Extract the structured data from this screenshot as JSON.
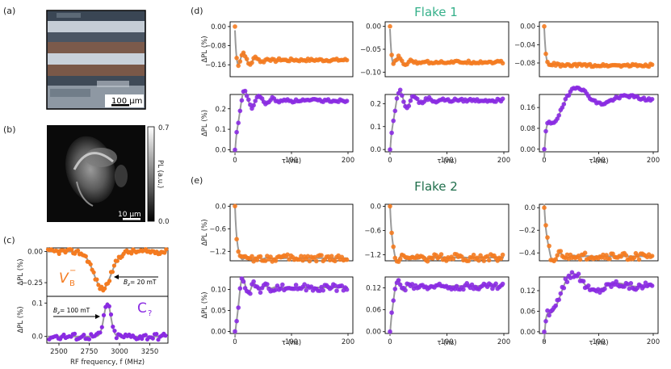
{
  "figure": {
    "panel_labels": {
      "a": "(a)",
      "b": "(b)",
      "c": "(c)",
      "d": "(d)",
      "e": "(e)"
    },
    "flake1_title": "Flake 1",
    "flake2_title": "Flake 2"
  },
  "panel_a": {
    "scalebar_label": "100 µm",
    "image_colors": {
      "stripe": "#7b5a4b",
      "metal": "#c5cdd6",
      "dark": "#3a4654"
    }
  },
  "panel_b": {
    "scalebar_label": "10 µm",
    "colorbar_label": "PL (a.u.)",
    "colorbar_max": "0.7",
    "colorbar_min": "0.0"
  },
  "panel_c": {
    "xlabel": "RF frequency, f (MHz)",
    "ylabel_top": "ΔPL (%)",
    "ylabel_bottom": "ΔPL (%)",
    "vb_label": "V",
    "vb_sub": "B",
    "vb_sup": "−",
    "c_label": "C",
    "c_sub": "?",
    "bz_top": "B",
    "bz_top_rest": " = 20 mT",
    "bz_bottom": "B",
    "bz_bottom_rest": " = 100 mT",
    "bz_sub": "z",
    "x_ticks": [
      "2500",
      "2750",
      "3000",
      "3250"
    ],
    "top_ticks": [
      "0.00",
      "−0.25"
    ],
    "bottom_ticks": [
      "0.1",
      "0.0"
    ]
  },
  "grid": {
    "ylabel": "ΔPL (%)",
    "xlabel": "τ (ns)",
    "x_ticks": [
      "0",
      "100",
      "200"
    ]
  },
  "colors": {
    "orange": "#f47b20",
    "purple": "#8a2be2",
    "fit": "#9a9a9a"
  },
  "chart_data": [
    {
      "panel": "c-top",
      "type": "scatter",
      "x_range": [
        2400,
        3400
      ],
      "ylim": [
        -0.36,
        0.03
      ],
      "dip_center": 2860,
      "dip_depth": -0.3,
      "dip_width": 100,
      "series": [
        {
          "name": "V_B^-",
          "color": "#f47b20"
        }
      ]
    },
    {
      "panel": "c-bottom",
      "type": "scatter",
      "x_range": [
        2400,
        3400
      ],
      "ylim": [
        -0.02,
        0.12
      ],
      "peak_center": 2900,
      "peak_height": 0.1,
      "peak_width": 40,
      "series": [
        {
          "name": "C_?",
          "color": "#8a2be2"
        }
      ]
    },
    {
      "panel": "d-1-top",
      "type": "scatter",
      "x_range": [
        0,
        200
      ],
      "yticks": [
        "0.00",
        "−0.08",
        "−0.16"
      ],
      "ylim": [
        -0.21,
        0.02
      ],
      "steady": -0.14,
      "start": 0.0,
      "min_value": -0.2,
      "osc_period": 22,
      "decay": 25
    },
    {
      "panel": "d-2-top",
      "type": "scatter",
      "x_range": [
        0,
        200
      ],
      "yticks": [
        "0.00",
        "−0.05",
        "−0.10"
      ],
      "ylim": [
        -0.11,
        0.01
      ],
      "steady": -0.078,
      "start": 0.0,
      "min_value": -0.1,
      "osc_period": 22,
      "decay": 25
    },
    {
      "panel": "d-3-top",
      "type": "scatter",
      "x_range": [
        0,
        200
      ],
      "yticks": [
        "0.00",
        "−0.04",
        "−0.08"
      ],
      "ylim": [
        -0.11,
        0.01
      ],
      "steady": -0.085,
      "start": 0.0,
      "min_value": -0.095,
      "osc_period": 30,
      "decay": 15
    },
    {
      "panel": "d-1-bottom",
      "type": "scatter",
      "x_range": [
        0,
        200
      ],
      "yticks": [
        "0.0",
        "0.1",
        "0.2"
      ],
      "ylim": [
        -0.01,
        0.27
      ],
      "steady": 0.24,
      "start": 0.0,
      "min_value": 0.14,
      "osc_period": 25,
      "decay": 30
    },
    {
      "panel": "d-2-bottom",
      "type": "scatter",
      "x_range": [
        0,
        200
      ],
      "yticks": [
        "0.0",
        "0.1",
        "0.2"
      ],
      "ylim": [
        -0.01,
        0.24
      ],
      "steady": 0.215,
      "start": 0.0,
      "min_value": 0.13,
      "osc_period": 25,
      "decay": 30
    },
    {
      "panel": "d-3-bottom",
      "type": "scatter",
      "x_range": [
        0,
        200
      ],
      "yticks": [
        "0.00",
        "0.08",
        "0.16"
      ],
      "ylim": [
        -0.01,
        0.21
      ],
      "steady": 0.195,
      "start": 0.0,
      "min_value": 0.06,
      "osc_period": 90,
      "decay": 60
    },
    {
      "panel": "e-1-top",
      "type": "scatter",
      "x_range": [
        0,
        200
      ],
      "yticks": [
        "0.0",
        "−0.6",
        "−1.2"
      ],
      "ylim": [
        -1.45,
        0.05
      ],
      "steady": -1.38,
      "start": 0.0,
      "min_value": -1.3,
      "osc_period": 18,
      "decay": 35
    },
    {
      "panel": "e-2-top",
      "type": "scatter",
      "x_range": [
        0,
        200
      ],
      "yticks": [
        "0.0",
        "−0.6",
        "−1.2"
      ],
      "ylim": [
        -1.35,
        0.05
      ],
      "steady": -1.27,
      "start": 0.0,
      "min_value": -1.1,
      "osc_period": 18,
      "decay": 35
    },
    {
      "panel": "e-3-top",
      "type": "scatter",
      "x_range": [
        0,
        200
      ],
      "yticks": [
        "0.0",
        "−0.2",
        "−0.4"
      ],
      "ylim": [
        -0.47,
        0.03
      ],
      "steady": -0.43,
      "start": 0.0,
      "min_value": -0.3,
      "osc_period": 25,
      "decay": 20
    },
    {
      "panel": "e-1-bottom",
      "type": "scatter",
      "x_range": [
        0,
        200
      ],
      "yticks": [
        "0.00",
        "0.05",
        "0.10"
      ],
      "ylim": [
        -0.005,
        0.13
      ],
      "steady": 0.105,
      "start": 0.0,
      "min_value": 0.05,
      "osc_period": 20,
      "decay": 20
    },
    {
      "panel": "e-2-bottom",
      "type": "scatter",
      "x_range": [
        0,
        200
      ],
      "yticks": [
        "0.00",
        "0.06",
        "0.12"
      ],
      "ylim": [
        -0.005,
        0.15
      ],
      "steady": 0.125,
      "start": 0.0,
      "min_value": 0.08,
      "osc_period": 20,
      "decay": 20
    },
    {
      "panel": "e-3-bottom",
      "type": "scatter",
      "x_range": [
        0,
        200
      ],
      "yticks": [
        "0.00",
        "0.06",
        "0.12"
      ],
      "ylim": [
        -0.005,
        0.16
      ],
      "steady": 0.135,
      "start": 0.0,
      "min_value": 0.02,
      "osc_period": 80,
      "decay": 50
    }
  ]
}
